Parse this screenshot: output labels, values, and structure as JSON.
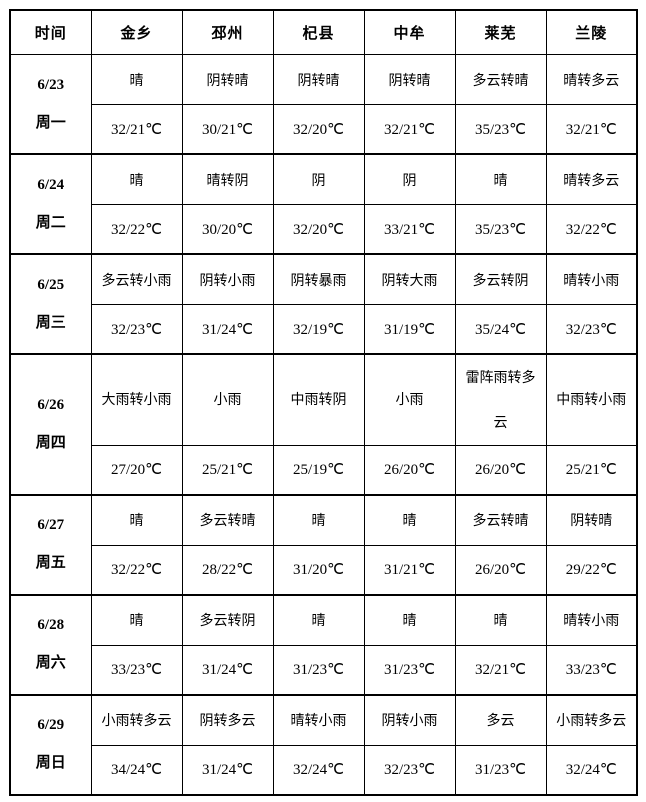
{
  "page": {
    "background_color": "#ffffff",
    "border_color": "#000000",
    "text_color": "#000000"
  },
  "table": {
    "columns": [
      "时间",
      "金乡",
      "邳州",
      "杞县",
      "中牟",
      "莱芜",
      "兰陵"
    ],
    "rows": [
      {
        "date": "6/23",
        "weekday": "周一",
        "weather": [
          "晴",
          "阴转晴",
          "阴转晴",
          "阴转晴",
          "多云转晴",
          "晴转多云"
        ],
        "temps": [
          "32/21℃",
          "30/21℃",
          "32/20℃",
          "32/21℃",
          "35/23℃",
          "32/21℃"
        ]
      },
      {
        "date": "6/24",
        "weekday": "周二",
        "weather": [
          "晴",
          "晴转阴",
          "阴",
          "阴",
          "晴",
          "晴转多云"
        ],
        "temps": [
          "32/22℃",
          "30/20℃",
          "32/20℃",
          "33/21℃",
          "35/23℃",
          "32/22℃"
        ]
      },
      {
        "date": "6/25",
        "weekday": "周三",
        "weather": [
          "多云转小雨",
          "阴转小雨",
          "阴转暴雨",
          "阴转大雨",
          "多云转阴",
          "晴转小雨"
        ],
        "temps": [
          "32/23℃",
          "31/24℃",
          "32/19℃",
          "31/19℃",
          "35/24℃",
          "32/23℃"
        ]
      },
      {
        "date": "6/26",
        "weekday": "周四",
        "weather": [
          "大雨转小雨",
          "小雨",
          "中雨转阴",
          "小雨",
          "雷阵雨转多云",
          "中雨转小雨"
        ],
        "temps": [
          "27/20℃",
          "25/21℃",
          "25/19℃",
          "26/20℃",
          "26/20℃",
          "25/21℃"
        ]
      },
      {
        "date": "6/27",
        "weekday": "周五",
        "weather": [
          "晴",
          "多云转晴",
          "晴",
          "晴",
          "多云转晴",
          "阴转晴"
        ],
        "temps": [
          "32/22℃",
          "28/22℃",
          "31/20℃",
          "31/21℃",
          "26/20℃",
          "29/22℃"
        ]
      },
      {
        "date": "6/28",
        "weekday": "周六",
        "weather": [
          "晴",
          "多云转阴",
          "晴",
          "晴",
          "晴",
          "晴转小雨"
        ],
        "temps": [
          "33/23℃",
          "31/24℃",
          "31/23℃",
          "31/23℃",
          "32/21℃",
          "33/23℃"
        ]
      },
      {
        "date": "6/29",
        "weekday": "周日",
        "weather": [
          "小雨转多云",
          "阴转多云",
          "晴转小雨",
          "阴转小雨",
          "多云",
          "小雨转多云"
        ],
        "temps": [
          "34/24℃",
          "31/24℃",
          "32/24℃",
          "32/23℃",
          "31/23℃",
          "32/24℃"
        ]
      }
    ]
  }
}
